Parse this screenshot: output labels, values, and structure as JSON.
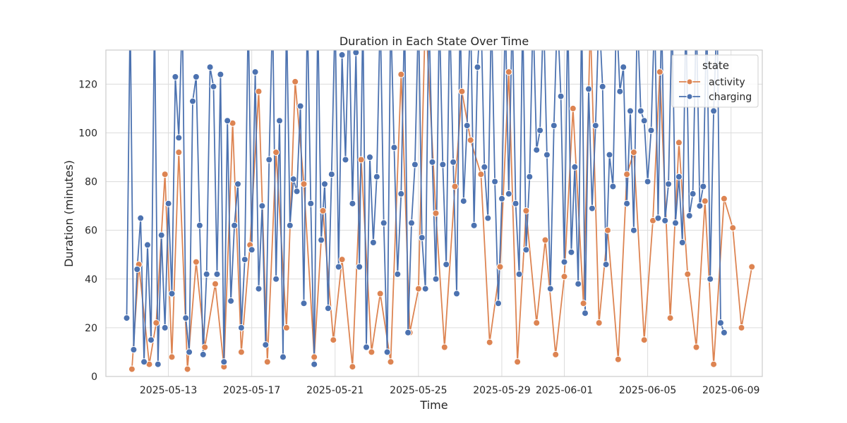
{
  "chart_data": {
    "type": "line",
    "title": "Duration in Each State Over Time",
    "xlabel": "Time",
    "ylabel": "Duration (minutes)",
    "x_axis_type": "date",
    "xlim": [
      "2025-05-10",
      "2025-06-10T12:00"
    ],
    "ylim": [
      0,
      134
    ],
    "x_ticks": [
      "2025-05-13",
      "2025-05-17",
      "2025-05-21",
      "2025-05-25",
      "2025-05-29",
      "2025-06-01",
      "2025-06-05",
      "2025-06-09"
    ],
    "y_ticks": [
      0,
      20,
      40,
      60,
      80,
      100,
      120
    ],
    "grid": true,
    "markers": true,
    "legend": {
      "title": "state",
      "placement": "top-right"
    },
    "series": [
      {
        "name": "activity",
        "color": "#dd8452",
        "points": [
          [
            "2025-05-11T06:00",
            3
          ],
          [
            "2025-05-11T14:00",
            46
          ],
          [
            "2025-05-12T02:00",
            5
          ],
          [
            "2025-05-12T10:00",
            22
          ],
          [
            "2025-05-12T20:00",
            83
          ],
          [
            "2025-05-13T04:00",
            8
          ],
          [
            "2025-05-13T12:00",
            92
          ],
          [
            "2025-05-13T22:00",
            3
          ],
          [
            "2025-05-14T08:00",
            47
          ],
          [
            "2025-05-14T18:00",
            12
          ],
          [
            "2025-05-15T06:00",
            38
          ],
          [
            "2025-05-15T16:00",
            4
          ],
          [
            "2025-05-16T02:00",
            104
          ],
          [
            "2025-05-16T12:00",
            10
          ],
          [
            "2025-05-16T22:00",
            54
          ],
          [
            "2025-05-17T08:00",
            117
          ],
          [
            "2025-05-17T18:00",
            6
          ],
          [
            "2025-05-18T04:00",
            92
          ],
          [
            "2025-05-18T16:00",
            20
          ],
          [
            "2025-05-19T02:00",
            121
          ],
          [
            "2025-05-19T12:00",
            79
          ],
          [
            "2025-05-20T00:00",
            8
          ],
          [
            "2025-05-20T10:00",
            68
          ],
          [
            "2025-05-20T22:00",
            15
          ],
          [
            "2025-05-21T08:00",
            48
          ],
          [
            "2025-05-21T20:00",
            4
          ],
          [
            "2025-05-22T06:00",
            89
          ],
          [
            "2025-05-22T18:00",
            10
          ],
          [
            "2025-05-23T04:00",
            34
          ],
          [
            "2025-05-23T16:00",
            6
          ],
          [
            "2025-05-24T04:00",
            124
          ],
          [
            "2025-05-24T14:00",
            18
          ],
          [
            "2025-05-25T00:00",
            36
          ],
          [
            "2025-05-25T08:00",
            150
          ],
          [
            "2025-05-25T20:00",
            67
          ],
          [
            "2025-05-26T06:00",
            12
          ],
          [
            "2025-05-26T18:00",
            78
          ],
          [
            "2025-05-27T02:00",
            117
          ],
          [
            "2025-05-27T12:00",
            97
          ],
          [
            "2025-05-28T00:00",
            83
          ],
          [
            "2025-05-28T10:00",
            14
          ],
          [
            "2025-05-28T22:00",
            45
          ],
          [
            "2025-05-29T08:00",
            125
          ],
          [
            "2025-05-29T18:00",
            6
          ],
          [
            "2025-05-30T04:00",
            68
          ],
          [
            "2025-05-30T16:00",
            22
          ],
          [
            "2025-05-31T02:00",
            56
          ],
          [
            "2025-05-31T14:00",
            9
          ],
          [
            "2025-06-01T00:00",
            41
          ],
          [
            "2025-06-01T10:00",
            110
          ],
          [
            "2025-06-01T22:00",
            30
          ],
          [
            "2025-06-02T06:00",
            145
          ],
          [
            "2025-06-02T16:00",
            22
          ],
          [
            "2025-06-03T02:00",
            60
          ],
          [
            "2025-06-03T14:00",
            7
          ],
          [
            "2025-06-04T00:00",
            83
          ],
          [
            "2025-06-04T08:00",
            92
          ],
          [
            "2025-06-04T20:00",
            15
          ],
          [
            "2025-06-05T06:00",
            64
          ],
          [
            "2025-06-05T14:00",
            125
          ],
          [
            "2025-06-06T02:00",
            24
          ],
          [
            "2025-06-06T12:00",
            96
          ],
          [
            "2025-06-06T22:00",
            42
          ],
          [
            "2025-06-07T08:00",
            12
          ],
          [
            "2025-06-07T18:00",
            72
          ],
          [
            "2025-06-08T04:00",
            5
          ],
          [
            "2025-06-08T16:00",
            73
          ],
          [
            "2025-06-09T02:00",
            61
          ],
          [
            "2025-06-09T12:00",
            20
          ],
          [
            "2025-06-10T00:00",
            45
          ]
        ]
      },
      {
        "name": "charging",
        "color": "#4c72b0",
        "points": [
          [
            "2025-05-11T00:00",
            24
          ],
          [
            "2025-05-11T04:00",
            150
          ],
          [
            "2025-05-11T08:00",
            11
          ],
          [
            "2025-05-11T12:00",
            44
          ],
          [
            "2025-05-11T16:00",
            65
          ],
          [
            "2025-05-11T20:00",
            6
          ],
          [
            "2025-05-12T00:00",
            54
          ],
          [
            "2025-05-12T04:00",
            15
          ],
          [
            "2025-05-12T08:00",
            150
          ],
          [
            "2025-05-12T12:00",
            5
          ],
          [
            "2025-05-12T16:00",
            58
          ],
          [
            "2025-05-12T20:00",
            20
          ],
          [
            "2025-05-13T00:00",
            71
          ],
          [
            "2025-05-13T04:00",
            34
          ],
          [
            "2025-05-13T08:00",
            123
          ],
          [
            "2025-05-13T12:00",
            98
          ],
          [
            "2025-05-13T16:00",
            150
          ],
          [
            "2025-05-13T20:00",
            24
          ],
          [
            "2025-05-14T00:00",
            10
          ],
          [
            "2025-05-14T04:00",
            113
          ],
          [
            "2025-05-14T08:00",
            123
          ],
          [
            "2025-05-14T12:00",
            62
          ],
          [
            "2025-05-14T16:00",
            9
          ],
          [
            "2025-05-14T20:00",
            42
          ],
          [
            "2025-05-15T00:00",
            127
          ],
          [
            "2025-05-15T04:00",
            119
          ],
          [
            "2025-05-15T08:00",
            42
          ],
          [
            "2025-05-15T12:00",
            124
          ],
          [
            "2025-05-15T16:00",
            6
          ],
          [
            "2025-05-15T20:00",
            105
          ],
          [
            "2025-05-16T00:00",
            31
          ],
          [
            "2025-05-16T04:00",
            62
          ],
          [
            "2025-05-16T08:00",
            79
          ],
          [
            "2025-05-16T12:00",
            20
          ],
          [
            "2025-05-16T16:00",
            48
          ],
          [
            "2025-05-16T20:00",
            150
          ],
          [
            "2025-05-17T00:00",
            52
          ],
          [
            "2025-05-17T04:00",
            125
          ],
          [
            "2025-05-17T08:00",
            36
          ],
          [
            "2025-05-17T12:00",
            70
          ],
          [
            "2025-05-17T16:00",
            13
          ],
          [
            "2025-05-17T20:00",
            89
          ],
          [
            "2025-05-18T00:00",
            150
          ],
          [
            "2025-05-18T04:00",
            40
          ],
          [
            "2025-05-18T08:00",
            105
          ],
          [
            "2025-05-18T12:00",
            8
          ],
          [
            "2025-05-18T16:00",
            150
          ],
          [
            "2025-05-18T20:00",
            62
          ],
          [
            "2025-05-19T00:00",
            81
          ],
          [
            "2025-05-19T04:00",
            76
          ],
          [
            "2025-05-19T08:00",
            111
          ],
          [
            "2025-05-19T12:00",
            30
          ],
          [
            "2025-05-19T16:00",
            150
          ],
          [
            "2025-05-19T20:00",
            71
          ],
          [
            "2025-05-20T00:00",
            5
          ],
          [
            "2025-05-20T04:00",
            150
          ],
          [
            "2025-05-20T08:00",
            56
          ],
          [
            "2025-05-20T12:00",
            79
          ],
          [
            "2025-05-20T16:00",
            28
          ],
          [
            "2025-05-20T20:00",
            83
          ],
          [
            "2025-05-21T00:00",
            150
          ],
          [
            "2025-05-21T04:00",
            45
          ],
          [
            "2025-05-21T08:00",
            132
          ],
          [
            "2025-05-21T12:00",
            89
          ],
          [
            "2025-05-21T16:00",
            150
          ],
          [
            "2025-05-21T20:00",
            71
          ],
          [
            "2025-05-22T00:00",
            133
          ],
          [
            "2025-05-22T04:00",
            45
          ],
          [
            "2025-05-22T08:00",
            150
          ],
          [
            "2025-05-22T12:00",
            12
          ],
          [
            "2025-05-22T16:00",
            90
          ],
          [
            "2025-05-22T20:00",
            55
          ],
          [
            "2025-05-23T00:00",
            82
          ],
          [
            "2025-05-23T04:00",
            150
          ],
          [
            "2025-05-23T08:00",
            63
          ],
          [
            "2025-05-23T12:00",
            10
          ],
          [
            "2025-05-23T16:00",
            150
          ],
          [
            "2025-05-23T20:00",
            94
          ],
          [
            "2025-05-24T00:00",
            42
          ],
          [
            "2025-05-24T04:00",
            75
          ],
          [
            "2025-05-24T08:00",
            150
          ],
          [
            "2025-05-24T12:00",
            18
          ],
          [
            "2025-05-24T16:00",
            63
          ],
          [
            "2025-05-24T20:00",
            87
          ],
          [
            "2025-05-25T00:00",
            150
          ],
          [
            "2025-05-25T04:00",
            57
          ],
          [
            "2025-05-25T08:00",
            36
          ],
          [
            "2025-05-25T12:00",
            150
          ],
          [
            "2025-05-25T16:00",
            88
          ],
          [
            "2025-05-25T20:00",
            40
          ],
          [
            "2025-05-26T00:00",
            150
          ],
          [
            "2025-05-26T04:00",
            87
          ],
          [
            "2025-05-26T08:00",
            46
          ],
          [
            "2025-05-26T12:00",
            150
          ],
          [
            "2025-05-26T16:00",
            88
          ],
          [
            "2025-05-26T20:00",
            34
          ],
          [
            "2025-05-27T00:00",
            150
          ],
          [
            "2025-05-27T04:00",
            72
          ],
          [
            "2025-05-27T08:00",
            103
          ],
          [
            "2025-05-27T12:00",
            150
          ],
          [
            "2025-05-27T16:00",
            62
          ],
          [
            "2025-05-27T20:00",
            127
          ],
          [
            "2025-05-28T00:00",
            150
          ],
          [
            "2025-05-28T04:00",
            86
          ],
          [
            "2025-05-28T08:00",
            65
          ],
          [
            "2025-05-28T12:00",
            150
          ],
          [
            "2025-05-28T16:00",
            80
          ],
          [
            "2025-05-28T20:00",
            30
          ],
          [
            "2025-05-29T00:00",
            73
          ],
          [
            "2025-05-29T04:00",
            150
          ],
          [
            "2025-05-29T08:00",
            75
          ],
          [
            "2025-05-29T12:00",
            150
          ],
          [
            "2025-05-29T16:00",
            71
          ],
          [
            "2025-05-29T20:00",
            42
          ],
          [
            "2025-05-30T00:00",
            150
          ],
          [
            "2025-05-30T04:00",
            52
          ],
          [
            "2025-05-30T08:00",
            82
          ],
          [
            "2025-05-30T12:00",
            150
          ],
          [
            "2025-05-30T16:00",
            93
          ],
          [
            "2025-05-30T20:00",
            101
          ],
          [
            "2025-05-31T00:00",
            150
          ],
          [
            "2025-05-31T04:00",
            91
          ],
          [
            "2025-05-31T08:00",
            36
          ],
          [
            "2025-05-31T12:00",
            103
          ],
          [
            "2025-05-31T16:00",
            150
          ],
          [
            "2025-05-31T20:00",
            115
          ],
          [
            "2025-06-01T00:00",
            47
          ],
          [
            "2025-06-01T04:00",
            150
          ],
          [
            "2025-06-01T08:00",
            51
          ],
          [
            "2025-06-01T12:00",
            86
          ],
          [
            "2025-06-01T16:00",
            38
          ],
          [
            "2025-06-01T20:00",
            150
          ],
          [
            "2025-06-02T00:00",
            26
          ],
          [
            "2025-06-02T04:00",
            118
          ],
          [
            "2025-06-02T08:00",
            69
          ],
          [
            "2025-06-02T12:00",
            103
          ],
          [
            "2025-06-02T16:00",
            150
          ],
          [
            "2025-06-02T20:00",
            119
          ],
          [
            "2025-06-03T00:00",
            46
          ],
          [
            "2025-06-03T04:00",
            91
          ],
          [
            "2025-06-03T08:00",
            78
          ],
          [
            "2025-06-03T12:00",
            150
          ],
          [
            "2025-06-03T16:00",
            117
          ],
          [
            "2025-06-03T20:00",
            127
          ],
          [
            "2025-06-04T00:00",
            71
          ],
          [
            "2025-06-04T04:00",
            109
          ],
          [
            "2025-06-04T08:00",
            60
          ],
          [
            "2025-06-04T12:00",
            150
          ],
          [
            "2025-06-04T16:00",
            109
          ],
          [
            "2025-06-04T20:00",
            105
          ],
          [
            "2025-06-05T00:00",
            80
          ],
          [
            "2025-06-05T04:00",
            101
          ],
          [
            "2025-06-05T08:00",
            150
          ],
          [
            "2025-06-05T12:00",
            65
          ],
          [
            "2025-06-05T16:00",
            150
          ],
          [
            "2025-06-05T20:00",
            64
          ],
          [
            "2025-06-06T00:00",
            79
          ],
          [
            "2025-06-06T04:00",
            150
          ],
          [
            "2025-06-06T08:00",
            63
          ],
          [
            "2025-06-06T12:00",
            82
          ],
          [
            "2025-06-06T16:00",
            55
          ],
          [
            "2025-06-06T20:00",
            150
          ],
          [
            "2025-06-07T00:00",
            66
          ],
          [
            "2025-06-07T04:00",
            75
          ],
          [
            "2025-06-07T08:00",
            150
          ],
          [
            "2025-06-07T12:00",
            70
          ],
          [
            "2025-06-07T16:00",
            78
          ],
          [
            "2025-06-07T20:00",
            150
          ],
          [
            "2025-06-08T00:00",
            40
          ],
          [
            "2025-06-08T04:00",
            109
          ],
          [
            "2025-06-08T08:00",
            150
          ],
          [
            "2025-06-08T12:00",
            22
          ],
          [
            "2025-06-08T16:00",
            18
          ]
        ]
      }
    ]
  }
}
